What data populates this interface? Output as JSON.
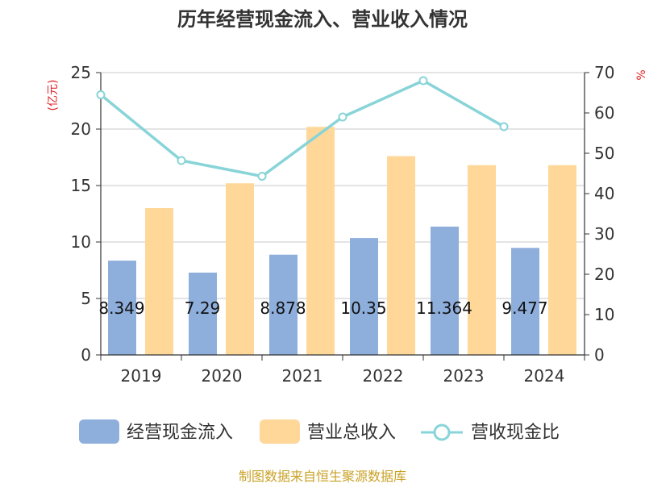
{
  "chart_data": {
    "type": "bar",
    "title": "历年经营现金流入、营业收入情况",
    "categories": [
      "2019",
      "2020",
      "2021",
      "2022",
      "2023",
      "2024"
    ],
    "left_axis": {
      "unit_label": "(亿元)",
      "ylim": [
        0,
        25
      ],
      "ticks": [
        0,
        5,
        10,
        15,
        20,
        25
      ]
    },
    "right_axis": {
      "unit_label": "%",
      "ylim": [
        0,
        70
      ],
      "ticks": [
        0,
        10,
        20,
        30,
        40,
        50,
        60,
        70
      ]
    },
    "series": [
      {
        "name": "经营现金流入",
        "type": "bar",
        "axis": "left",
        "color": "#8eaedc",
        "values": [
          8.349,
          7.29,
          8.878,
          10.35,
          11.364,
          9.477
        ],
        "data_labels": [
          "8.349",
          "7.29",
          "8.878",
          "10.35",
          "11.364",
          "9.477"
        ]
      },
      {
        "name": "营业总收入",
        "type": "bar",
        "axis": "left",
        "color": "#ffd899",
        "values": [
          13.0,
          15.2,
          20.2,
          17.6,
          16.8,
          16.8
        ]
      },
      {
        "name": "营收现金比",
        "type": "line",
        "axis": "right",
        "color": "#88d4d8",
        "values": [
          64.5,
          48.2,
          44.3,
          59.0,
          68.0,
          56.6
        ]
      }
    ],
    "grid": true,
    "legend_position": "bottom"
  },
  "source": "制图数据来自恒生聚源数据库"
}
